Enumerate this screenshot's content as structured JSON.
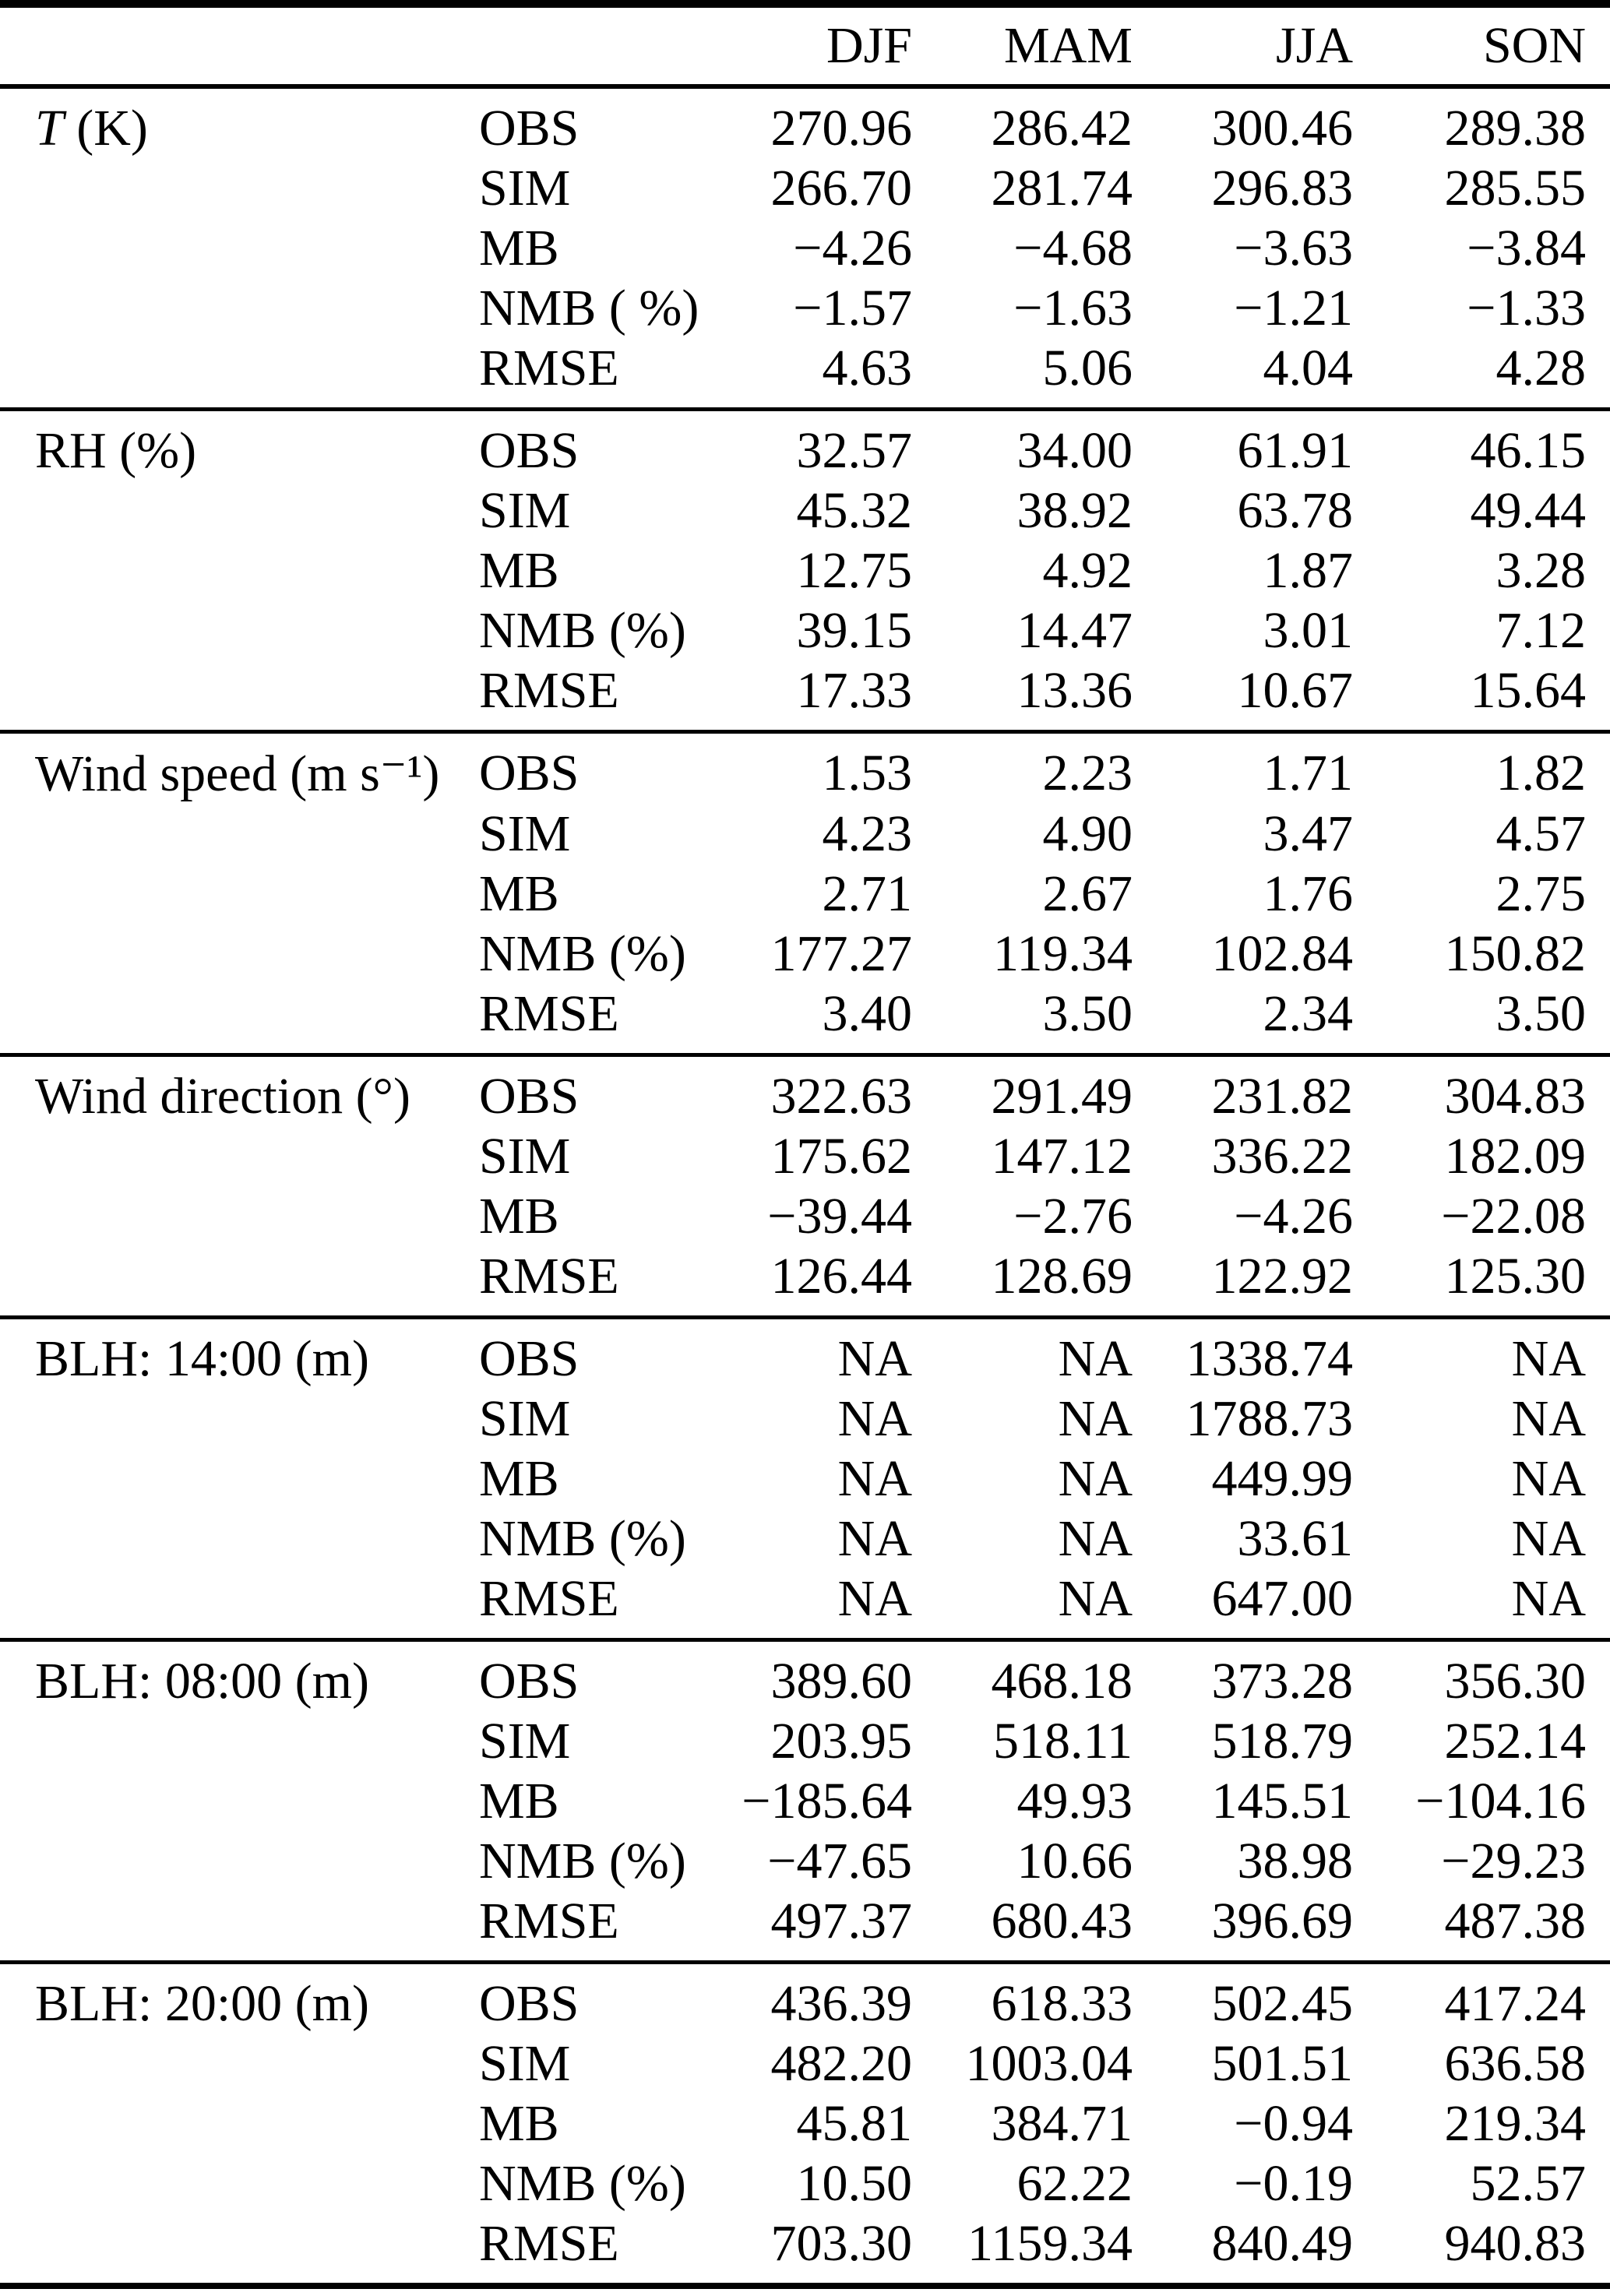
{
  "table": {
    "season_columns": [
      "DJF",
      "MAM",
      "JJA",
      "SON"
    ],
    "sections": [
      {
        "variable_italic": "T",
        "variable_rest": " (K)",
        "rows": [
          {
            "stat": "OBS",
            "values": [
              "270.96",
              "286.42",
              "300.46",
              "289.38"
            ]
          },
          {
            "stat": "SIM",
            "values": [
              "266.70",
              "281.74",
              "296.83",
              "285.55"
            ]
          },
          {
            "stat": "MB",
            "values": [
              "−4.26",
              "−4.68",
              "−3.63",
              "−3.84"
            ]
          },
          {
            "stat": "NMB ( %)",
            "values": [
              "−1.57",
              "−1.63",
              "−1.21",
              "−1.33"
            ]
          },
          {
            "stat": "RMSE",
            "values": [
              "4.63",
              "5.06",
              "4.04",
              "4.28"
            ]
          }
        ]
      },
      {
        "variable_italic": "",
        "variable_rest": "RH (%)",
        "rows": [
          {
            "stat": "OBS",
            "values": [
              "32.57",
              "34.00",
              "61.91",
              "46.15"
            ]
          },
          {
            "stat": "SIM",
            "values": [
              "45.32",
              "38.92",
              "63.78",
              "49.44"
            ]
          },
          {
            "stat": "MB",
            "values": [
              "12.75",
              "4.92",
              "1.87",
              "3.28"
            ]
          },
          {
            "stat": "NMB (%)",
            "values": [
              "39.15",
              "14.47",
              "3.01",
              "7.12"
            ]
          },
          {
            "stat": "RMSE",
            "values": [
              "17.33",
              "13.36",
              "10.67",
              "15.64"
            ]
          }
        ]
      },
      {
        "variable_italic": "",
        "variable_rest": "Wind speed (m s⁻¹)",
        "rows": [
          {
            "stat": "OBS",
            "values": [
              "1.53",
              "2.23",
              "1.71",
              "1.82"
            ]
          },
          {
            "stat": "SIM",
            "values": [
              "4.23",
              "4.90",
              "3.47",
              "4.57"
            ]
          },
          {
            "stat": "MB",
            "values": [
              "2.71",
              "2.67",
              "1.76",
              "2.75"
            ]
          },
          {
            "stat": "NMB (%)",
            "values": [
              "177.27",
              "119.34",
              "102.84",
              "150.82"
            ]
          },
          {
            "stat": "RMSE",
            "values": [
              "3.40",
              "3.50",
              "2.34",
              "3.50"
            ]
          }
        ]
      },
      {
        "variable_italic": "",
        "variable_rest": "Wind direction (°)",
        "rows": [
          {
            "stat": "OBS",
            "values": [
              "322.63",
              "291.49",
              "231.82",
              "304.83"
            ]
          },
          {
            "stat": "SIM",
            "values": [
              "175.62",
              "147.12",
              "336.22",
              "182.09"
            ]
          },
          {
            "stat": "MB",
            "values": [
              "−39.44",
              "−2.76",
              "−4.26",
              "−22.08"
            ]
          },
          {
            "stat": "RMSE",
            "values": [
              "126.44",
              "128.69",
              "122.92",
              "125.30"
            ]
          }
        ]
      },
      {
        "variable_italic": "",
        "variable_rest": "BLH: 14:00 (m)",
        "rows": [
          {
            "stat": "OBS",
            "values": [
              "NA",
              "NA",
              "1338.74",
              "NA"
            ]
          },
          {
            "stat": "SIM",
            "values": [
              "NA",
              "NA",
              "1788.73",
              "NA"
            ]
          },
          {
            "stat": "MB",
            "values": [
              "NA",
              "NA",
              "449.99",
              "NA"
            ]
          },
          {
            "stat": "NMB (%)",
            "values": [
              "NA",
              "NA",
              "33.61",
              "NA"
            ]
          },
          {
            "stat": "RMSE",
            "values": [
              "NA",
              "NA",
              "647.00",
              "NA"
            ]
          }
        ]
      },
      {
        "variable_italic": "",
        "variable_rest": "BLH: 08:00 (m)",
        "rows": [
          {
            "stat": "OBS",
            "values": [
              "389.60",
              "468.18",
              "373.28",
              "356.30"
            ]
          },
          {
            "stat": "SIM",
            "values": [
              "203.95",
              "518.11",
              "518.79",
              "252.14"
            ]
          },
          {
            "stat": "MB",
            "values": [
              "−185.64",
              "49.93",
              "145.51",
              "−104.16"
            ]
          },
          {
            "stat": "NMB (%)",
            "values": [
              "−47.65",
              "10.66",
              "38.98",
              "−29.23"
            ]
          },
          {
            "stat": "RMSE",
            "values": [
              "497.37",
              "680.43",
              "396.69",
              "487.38"
            ]
          }
        ]
      },
      {
        "variable_italic": "",
        "variable_rest": "BLH: 20:00 (m)",
        "rows": [
          {
            "stat": "OBS",
            "values": [
              "436.39",
              "618.33",
              "502.45",
              "417.24"
            ]
          },
          {
            "stat": "SIM",
            "values": [
              "482.20",
              "1003.04",
              "501.51",
              "636.58"
            ]
          },
          {
            "stat": "MB",
            "values": [
              "45.81",
              "384.71",
              "−0.94",
              "219.34"
            ]
          },
          {
            "stat": "NMB (%)",
            "values": [
              "10.50",
              "62.22",
              "−0.19",
              "52.57"
            ]
          },
          {
            "stat": "RMSE",
            "values": [
              "703.30",
              "1159.34",
              "840.49",
              "940.83"
            ]
          }
        ]
      }
    ]
  }
}
